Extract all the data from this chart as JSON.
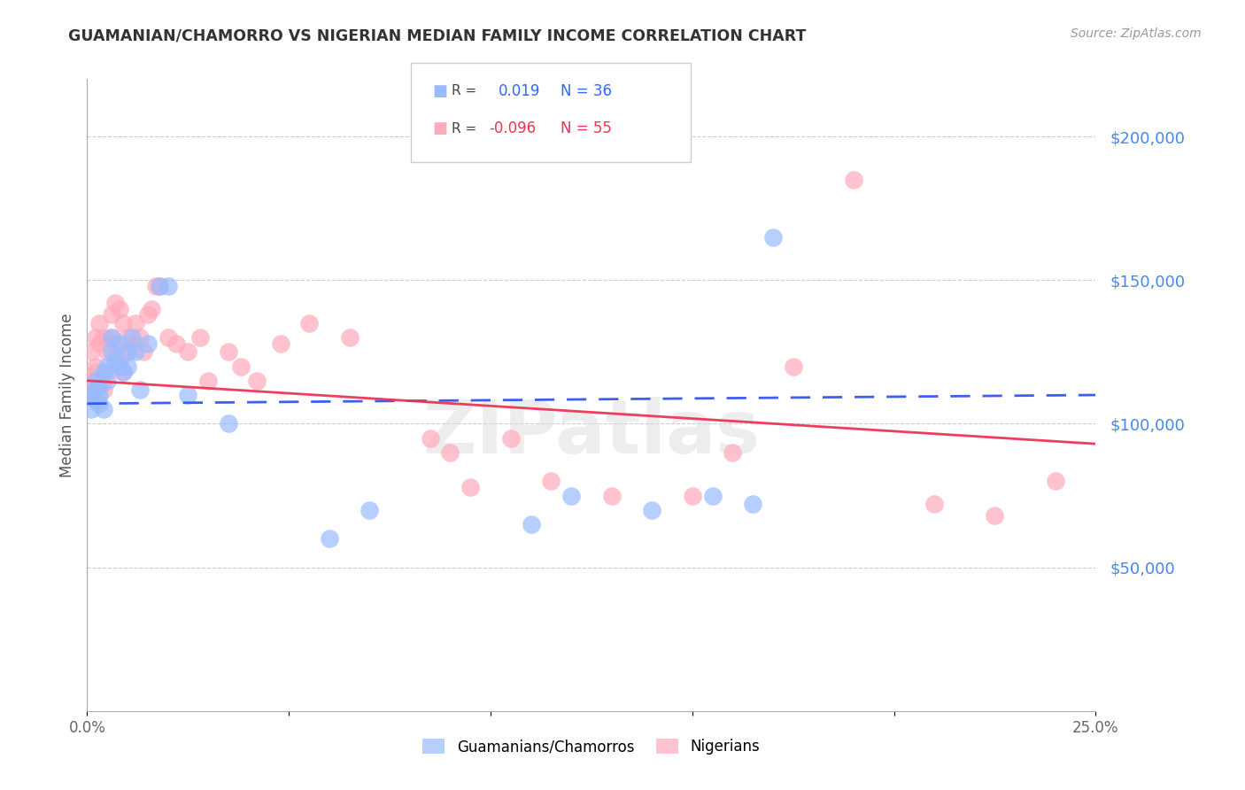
{
  "title": "GUAMANIAN/CHAMORRO VS NIGERIAN MEDIAN FAMILY INCOME CORRELATION CHART",
  "source": "Source: ZipAtlas.com",
  "ylabel": "Median Family Income",
  "ytick_labels": [
    "$50,000",
    "$100,000",
    "$150,000",
    "$200,000"
  ],
  "ytick_values": [
    50000,
    100000,
    150000,
    200000
  ],
  "ylim": [
    0,
    220000
  ],
  "xlim": [
    0.0,
    0.25
  ],
  "watermark": "ZIPatlas",
  "blue_color": "#99BBFF",
  "pink_color": "#FFAABB",
  "line_blue": "#3355EE",
  "line_pink": "#EE3355",
  "ytick_color": "#4488EE",
  "title_color": "#333333",
  "guam_x": [
    0.001,
    0.001,
    0.002,
    0.002,
    0.002,
    0.003,
    0.003,
    0.003,
    0.004,
    0.004,
    0.005,
    0.005,
    0.006,
    0.006,
    0.007,
    0.008,
    0.008,
    0.009,
    0.01,
    0.01,
    0.011,
    0.012,
    0.013,
    0.015,
    0.018,
    0.02,
    0.025,
    0.035,
    0.06,
    0.07,
    0.11,
    0.12,
    0.14,
    0.155,
    0.165,
    0.17
  ],
  "guam_y": [
    105000,
    110000,
    112000,
    108000,
    115000,
    113000,
    107000,
    110000,
    118000,
    105000,
    120000,
    115000,
    125000,
    130000,
    122000,
    128000,
    120000,
    118000,
    125000,
    120000,
    130000,
    125000,
    112000,
    128000,
    148000,
    148000,
    110000,
    100000,
    60000,
    70000,
    65000,
    75000,
    70000,
    75000,
    72000,
    165000
  ],
  "nigerian_x": [
    0.001,
    0.001,
    0.001,
    0.002,
    0.002,
    0.002,
    0.003,
    0.003,
    0.003,
    0.004,
    0.004,
    0.005,
    0.005,
    0.006,
    0.006,
    0.007,
    0.007,
    0.008,
    0.008,
    0.009,
    0.009,
    0.01,
    0.01,
    0.011,
    0.012,
    0.013,
    0.014,
    0.015,
    0.016,
    0.017,
    0.018,
    0.02,
    0.022,
    0.025,
    0.028,
    0.03,
    0.035,
    0.038,
    0.042,
    0.048,
    0.055,
    0.065,
    0.085,
    0.09,
    0.095,
    0.105,
    0.115,
    0.13,
    0.15,
    0.16,
    0.175,
    0.19,
    0.21,
    0.225,
    0.24
  ],
  "nigerian_y": [
    110000,
    125000,
    115000,
    130000,
    120000,
    118000,
    135000,
    128000,
    115000,
    130000,
    112000,
    125000,
    118000,
    138000,
    130000,
    142000,
    128000,
    140000,
    122000,
    135000,
    118000,
    130000,
    125000,
    128000,
    135000,
    130000,
    125000,
    138000,
    140000,
    148000,
    148000,
    130000,
    128000,
    125000,
    130000,
    115000,
    125000,
    120000,
    115000,
    128000,
    135000,
    130000,
    95000,
    90000,
    78000,
    95000,
    80000,
    75000,
    75000,
    90000,
    120000,
    185000,
    72000,
    68000,
    80000
  ]
}
